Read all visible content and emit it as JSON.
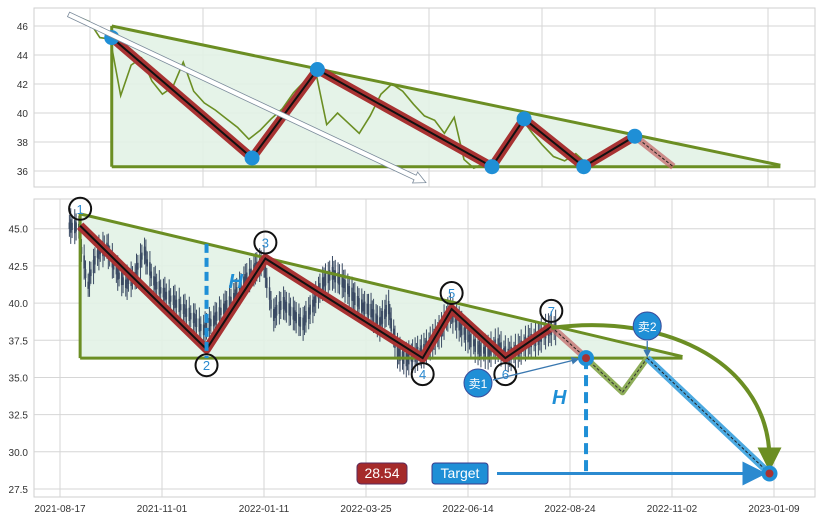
{
  "chart_data": [
    {
      "type": "line",
      "panel": "top",
      "ylim": [
        34.9,
        47.24
      ],
      "yticks": [
        36,
        38,
        40,
        42,
        44,
        46
      ],
      "grid": true,
      "colors": {
        "price": "#6b8e23",
        "pattern_fill": "#e2f2e6",
        "trend": "#6b8e23",
        "zigzag": "#a83232",
        "pivot": "#1f8fd6"
      },
      "arrow": {
        "from": {
          "date": "2021-08-03",
          "price": 46.8
        },
        "to": {
          "date": "2022-03-23",
          "price": 35.2
        }
      }
    },
    {
      "type": "candlestick",
      "panel": "bottom",
      "ylim": [
        26.96,
        47.0
      ],
      "yticks": [
        "27.5",
        "30.0",
        "32.5",
        "35.0",
        "37.5",
        "40.0",
        "42.5",
        "45.0"
      ],
      "xticks": [
        "2021-08-17",
        "2021-11-01",
        "2022-01-11",
        "2022-03-25",
        "2022-06-14",
        "2022-08-24",
        "2022-11-02",
        "2023-01-09"
      ],
      "grid": true,
      "colors": {
        "candle": "#3a4a63",
        "breakout_path": "#6b8e23",
        "target_path": "#4aa8e0",
        "h_marker": "#1f8fd6",
        "price_label": "#a52a2a",
        "target_label": "#1f8fd6"
      },
      "h_label": "H",
      "sell_labels": [
        "卖1",
        "卖2"
      ],
      "price_label": "28.54",
      "target_label": "Target",
      "target": {
        "date": "2023-01-06",
        "price": 28.54
      },
      "breakout": {
        "date": "2022-09-04",
        "price": 36.3
      },
      "pullback": [
        {
          "date": "2022-09-29",
          "price": 34.0
        },
        {
          "date": "2022-10-16",
          "price": 36.3
        }
      ]
    }
  ],
  "pattern": {
    "start_date": "2021-09-01",
    "end_date": "2022-11-09",
    "upper_start": 46.0,
    "upper_end": 36.4,
    "lower": 36.3,
    "pivots": [
      {
        "label": "1",
        "date": "2021-09-01",
        "price": 45.2
      },
      {
        "label": "2",
        "date": "2021-12-02",
        "price": 36.9
      },
      {
        "label": "3",
        "date": "2022-01-12",
        "price": 43.0
      },
      {
        "label": "4",
        "date": "2022-05-09",
        "price": 36.3
      },
      {
        "label": "5",
        "date": "2022-06-01",
        "price": 39.6
      },
      {
        "label": "6",
        "date": "2022-07-10",
        "price": 36.3
      },
      {
        "label": "7",
        "date": "2022-08-11",
        "price": 38.4
      }
    ]
  },
  "prices": {
    "dates": [
      "2021-08-10",
      "2021-08-17",
      "2021-08-24",
      "2021-08-31",
      "2021-09-07",
      "2021-09-14",
      "2021-09-21",
      "2021-09-28",
      "2021-10-05",
      "2021-10-12",
      "2021-10-19",
      "2021-10-26",
      "2021-11-02",
      "2021-11-09",
      "2021-11-16",
      "2021-11-23",
      "2021-11-30",
      "2021-12-07",
      "2021-12-14",
      "2021-12-21",
      "2021-12-28",
      "2022-01-04",
      "2022-01-11",
      "2022-01-18",
      "2022-01-25",
      "2022-02-01",
      "2022-02-08",
      "2022-02-15",
      "2022-02-22",
      "2022-03-01",
      "2022-03-08",
      "2022-03-15",
      "2022-03-22",
      "2022-03-29",
      "2022-04-05",
      "2022-04-12",
      "2022-04-19",
      "2022-04-26",
      "2022-05-03",
      "2022-05-10",
      "2022-05-17",
      "2022-05-24",
      "2022-05-31",
      "2022-06-07",
      "2022-06-14",
      "2022-06-21",
      "2022-06-28",
      "2022-07-05",
      "2022-07-12",
      "2022-07-19",
      "2022-07-26",
      "2022-08-02",
      "2022-08-09",
      "2022-08-16"
    ],
    "close": [
      46.6,
      46.3,
      45.2,
      45.1,
      41.2,
      43.3,
      43.8,
      42.2,
      41.3,
      41.8,
      43.5,
      41.5,
      40.7,
      40.2,
      39.6,
      39.0,
      38.2,
      38.8,
      39.6,
      40.3,
      41.4,
      42.2,
      42.8,
      39.2,
      40.0,
      39.3,
      38.6,
      39.8,
      41.3,
      42.0,
      41.5,
      40.6,
      39.8,
      39.5,
      38.6,
      39.7,
      36.8,
      36.2,
      36.5,
      36.8,
      37.4,
      38.2,
      39.5,
      38.6,
      37.8,
      37.0,
      36.7,
      37.2,
      36.5,
      36.8,
      37.4,
      37.6,
      38.2,
      38.4
    ]
  }
}
